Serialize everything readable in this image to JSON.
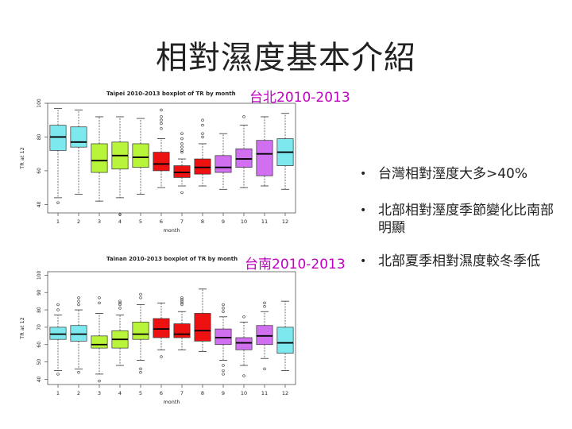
{
  "slide": {
    "title": "相對濕度基本介紹"
  },
  "labels": {
    "taipei": "台北2010-2013",
    "tainan": "台南2010-2013"
  },
  "bullets": [
    "台灣相對溼度大多>40%",
    "北部相對溼度季節變化比南部明顯",
    "北部夏季相對濕度較冬季低"
  ],
  "chart_data": [
    {
      "type": "box",
      "title": "Taipei 2010-2013 boxplot of TR by month",
      "xlabel": "month",
      "ylabel": "TR at 12",
      "ylim": [
        35,
        100
      ],
      "yticks": [
        40,
        60,
        80,
        100
      ],
      "categories": [
        "1",
        "2",
        "3",
        "4",
        "5",
        "6",
        "7",
        "8",
        "9",
        "10",
        "11",
        "12"
      ],
      "colors": [
        "#7ee8ef",
        "#7ee8ef",
        "#b7f43a",
        "#b7f43a",
        "#b7f43a",
        "#ee1111",
        "#ee1111",
        "#ee1111",
        "#d070f0",
        "#d070f0",
        "#d070f0",
        "#7ee8ef"
      ],
      "boxes": [
        {
          "min": 44,
          "q1": 72,
          "median": 80,
          "q3": 87,
          "max": 97,
          "outliers": [
            41
          ]
        },
        {
          "min": 46,
          "q1": 74,
          "median": 77,
          "q3": 86,
          "max": 96,
          "outliers": []
        },
        {
          "min": 42,
          "q1": 59,
          "median": 66,
          "q3": 76,
          "max": 92,
          "outliers": []
        },
        {
          "min": 44,
          "q1": 61,
          "median": 69,
          "q3": 77,
          "max": 92,
          "outliers": [
            34
          ]
        },
        {
          "min": 46,
          "q1": 62,
          "median": 68,
          "q3": 76,
          "max": 91,
          "outliers": []
        },
        {
          "min": 50,
          "q1": 60,
          "median": 64,
          "q3": 71,
          "max": 79,
          "outliers": [
            85,
            88,
            90,
            92,
            96
          ]
        },
        {
          "min": 51,
          "q1": 56,
          "median": 59,
          "q3": 63,
          "max": 67,
          "outliers": [
            47,
            71,
            72,
            74,
            76,
            79,
            82
          ]
        },
        {
          "min": 51,
          "q1": 58,
          "median": 62,
          "q3": 67,
          "max": 76,
          "outliers": [
            80,
            82,
            87,
            90
          ]
        },
        {
          "min": 49,
          "q1": 59,
          "median": 62,
          "q3": 69,
          "max": 82,
          "outliers": []
        },
        {
          "min": 50,
          "q1": 62,
          "median": 67,
          "q3": 73,
          "max": 87,
          "outliers": [
            92
          ]
        },
        {
          "min": 51,
          "q1": 57,
          "median": 70,
          "q3": 78,
          "max": 92,
          "outliers": []
        },
        {
          "min": 49,
          "q1": 63,
          "median": 71,
          "q3": 79,
          "max": 94,
          "outliers": []
        }
      ]
    },
    {
      "type": "box",
      "title": "Tainan 2010-2013 boxplot of TR by month",
      "xlabel": "month",
      "ylabel": "TR at 12",
      "ylim": [
        37,
        102
      ],
      "yticks": [
        40,
        50,
        60,
        70,
        80,
        90,
        100
      ],
      "categories": [
        "1",
        "2",
        "3",
        "4",
        "5",
        "6",
        "7",
        "8",
        "9",
        "10",
        "11",
        "12"
      ],
      "colors": [
        "#7ee8ef",
        "#7ee8ef",
        "#b7f43a",
        "#b7f43a",
        "#b7f43a",
        "#ee1111",
        "#ee1111",
        "#ee1111",
        "#d070f0",
        "#d070f0",
        "#d070f0",
        "#7ee8ef"
      ],
      "boxes": [
        {
          "min": 45,
          "q1": 63,
          "median": 66,
          "q3": 70,
          "max": 77,
          "outliers": [
            43,
            80,
            83
          ]
        },
        {
          "min": 46,
          "q1": 62,
          "median": 66,
          "q3": 71,
          "max": 80,
          "outliers": [
            44,
            83,
            85,
            87
          ]
        },
        {
          "min": 43,
          "q1": 58,
          "median": 60,
          "q3": 65,
          "max": 78,
          "outliers": [
            39,
            84,
            87
          ]
        },
        {
          "min": 48,
          "q1": 58,
          "median": 63,
          "q3": 68,
          "max": 77,
          "outliers": [
            81,
            83,
            84,
            85
          ]
        },
        {
          "min": 51,
          "q1": 63,
          "median": 66,
          "q3": 73,
          "max": 83,
          "outliers": [
            44,
            46,
            87,
            89
          ]
        },
        {
          "min": 57,
          "q1": 64,
          "median": 69,
          "q3": 75,
          "max": 84,
          "outliers": [
            53
          ]
        },
        {
          "min": 57,
          "q1": 64,
          "median": 66,
          "q3": 72,
          "max": 79,
          "outliers": [
            83,
            84,
            85,
            86,
            87
          ]
        },
        {
          "min": 56,
          "q1": 62,
          "median": 68,
          "q3": 78,
          "max": 92,
          "outliers": []
        },
        {
          "min": 51,
          "q1": 60,
          "median": 64,
          "q3": 69,
          "max": 76,
          "outliers": [
            43,
            45,
            48,
            79,
            81,
            83
          ]
        },
        {
          "min": 48,
          "q1": 57,
          "median": 61,
          "q3": 64,
          "max": 73,
          "outliers": [
            42,
            76
          ]
        },
        {
          "min": 52,
          "q1": 60,
          "median": 65,
          "q3": 71,
          "max": 79,
          "outliers": [
            46,
            82,
            84
          ]
        },
        {
          "min": 45,
          "q1": 55,
          "median": 61,
          "q3": 70,
          "max": 85,
          "outliers": []
        }
      ]
    }
  ]
}
